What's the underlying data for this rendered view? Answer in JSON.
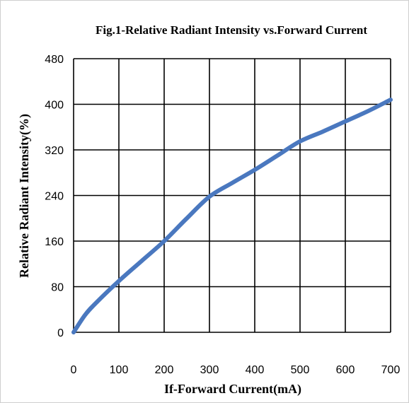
{
  "chart_data": {
    "type": "line",
    "title": "Fig.1-Relative Radiant Intensity vs.Forward  Current",
    "xlabel": "If-Forward Current(mA)",
    "ylabel": "Relative  Radiant Intensity(%)",
    "xlim": [
      0,
      700
    ],
    "ylim": [
      0,
      480
    ],
    "x_ticks": [
      0,
      100,
      200,
      300,
      400,
      500,
      600,
      700
    ],
    "y_ticks": [
      0,
      80,
      160,
      240,
      320,
      400,
      480
    ],
    "grid": true,
    "legend": "none",
    "series": [
      {
        "color": "#4a78bf",
        "x": [
          0,
          25,
          50,
          100,
          150,
          200,
          250,
          300,
          350,
          400,
          450,
          500,
          550,
          600,
          650,
          700
        ],
        "y": [
          0,
          30,
          52,
          90,
          125,
          160,
          200,
          238,
          262,
          285,
          310,
          335,
          352,
          370,
          388,
          408
        ]
      }
    ]
  }
}
